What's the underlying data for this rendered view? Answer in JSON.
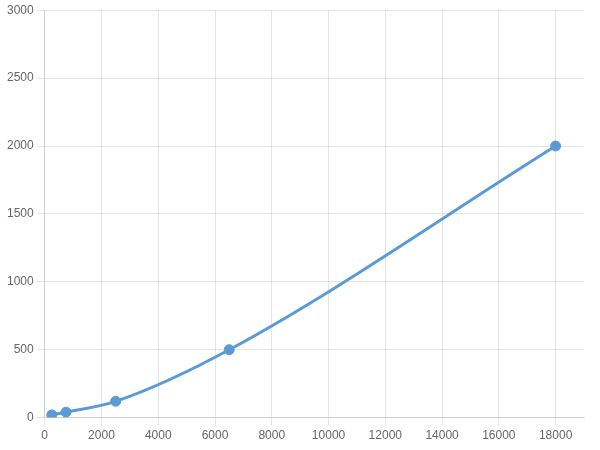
{
  "chart_data": {
    "type": "line",
    "x": [
      250,
      750,
      2500,
      6500,
      18000
    ],
    "values": [
      20,
      40,
      120,
      500,
      2000
    ],
    "color": "#5b9bd5",
    "marker": "circle",
    "xlim": [
      0,
      19000
    ],
    "ylim": [
      0,
      3000
    ],
    "xticks": [
      0,
      2000,
      4000,
      6000,
      8000,
      10000,
      12000,
      14000,
      16000,
      18000
    ],
    "yticks": [
      0,
      500,
      1000,
      1500,
      2000,
      2500,
      3000
    ],
    "grid": true
  }
}
